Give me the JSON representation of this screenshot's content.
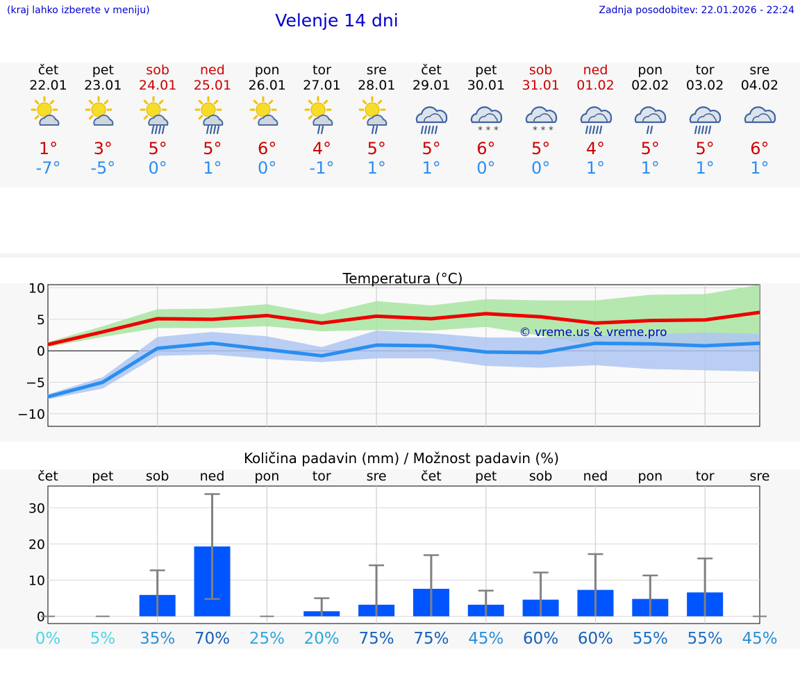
{
  "header": {
    "region_note": "(kraj lahko izberete v meniju)",
    "title": "Velenje 14 dni",
    "last_update": "Zadnja posodobitev: 22.01.2026 - 22:24"
  },
  "forecast": [
    {
      "day": "čet",
      "date": "22.01",
      "weekend": false,
      "icon": "sun-cloud-icon",
      "tmax": "1°",
      "tmin": "-7°"
    },
    {
      "day": "pet",
      "date": "23.01",
      "weekend": false,
      "icon": "sun-cloud-icon",
      "tmax": "3°",
      "tmin": "-5°"
    },
    {
      "day": "sob",
      "date": "24.01",
      "weekend": true,
      "icon": "sun-cloud-rain-icon",
      "tmax": "5°",
      "tmin": "0°"
    },
    {
      "day": "ned",
      "date": "25.01",
      "weekend": true,
      "icon": "sun-cloud-rain-icon",
      "tmax": "5°",
      "tmin": "1°"
    },
    {
      "day": "pon",
      "date": "26.01",
      "weekend": false,
      "icon": "sun-cloud-icon",
      "tmax": "6°",
      "tmin": "0°"
    },
    {
      "day": "tor",
      "date": "27.01",
      "weekend": false,
      "icon": "sun-cloud-light-rain-icon",
      "tmax": "4°",
      "tmin": "-1°"
    },
    {
      "day": "sre",
      "date": "28.01",
      "weekend": false,
      "icon": "sun-cloud-light-rain-icon",
      "tmax": "5°",
      "tmin": "1°"
    },
    {
      "day": "čet",
      "date": "29.01",
      "weekend": false,
      "icon": "cloud-rain-icon",
      "tmax": "5°",
      "tmin": "1°"
    },
    {
      "day": "pet",
      "date": "30.01",
      "weekend": false,
      "icon": "cloud-snow-icon",
      "tmax": "6°",
      "tmin": "0°"
    },
    {
      "day": "sob",
      "date": "31.01",
      "weekend": true,
      "icon": "cloud-snow-icon",
      "tmax": "5°",
      "tmin": "0°"
    },
    {
      "day": "ned",
      "date": "01.02",
      "weekend": true,
      "icon": "cloud-rain-icon",
      "tmax": "4°",
      "tmin": "1°"
    },
    {
      "day": "pon",
      "date": "02.02",
      "weekend": false,
      "icon": "cloud-light-rain-icon",
      "tmax": "5°",
      "tmin": "1°"
    },
    {
      "day": "tor",
      "date": "03.02",
      "weekend": false,
      "icon": "cloud-rain-icon",
      "tmax": "5°",
      "tmin": "1°"
    },
    {
      "day": "sre",
      "date": "04.02",
      "weekend": false,
      "icon": "cloud-icon",
      "tmax": "6°",
      "tmin": "1°"
    }
  ],
  "colors": {
    "title_blue": "#0000cc",
    "max_red": "#ee0000",
    "min_blue": "#2a8ef0",
    "max_band": "#a8e4a0",
    "min_band": "#aec6f2",
    "bar_blue": "#0055ff",
    "whisker": "#808080",
    "weekend_red": "#cc0000"
  },
  "chart_data": [
    {
      "type": "line",
      "title": "Temperatura (°C)",
      "watermark": "© vreme.us & vreme.pro",
      "x": [
        0,
        1,
        2,
        3,
        4,
        5,
        6,
        7,
        8,
        9,
        10,
        11,
        12,
        13
      ],
      "ylim": [
        -12,
        10.5
      ],
      "yticks": [
        10,
        5,
        0,
        -5,
        -10
      ],
      "ytick_labels": [
        "10",
        "5",
        "0",
        "−5",
        "−10"
      ],
      "series": [
        {
          "name": "max",
          "values": [
            1.0,
            3.0,
            5.1,
            5.0,
            5.6,
            4.4,
            5.5,
            5.1,
            5.9,
            5.4,
            4.4,
            4.8,
            4.9,
            6.1
          ],
          "band_high": [
            1.4,
            3.9,
            6.6,
            6.7,
            7.4,
            5.8,
            7.9,
            7.2,
            8.2,
            8.0,
            8.0,
            8.9,
            9.0,
            10.5
          ],
          "band_low": [
            0.6,
            2.2,
            3.6,
            3.6,
            3.9,
            3.1,
            3.3,
            3.2,
            3.8,
            2.4,
            0.8,
            0.7,
            1.1,
            1.3
          ]
        },
        {
          "name": "min",
          "values": [
            -7.3,
            -5.0,
            0.4,
            1.2,
            0.2,
            -0.8,
            0.9,
            0.8,
            -0.2,
            -0.3,
            1.2,
            1.1,
            0.8,
            1.2
          ],
          "band_high": [
            -6.9,
            -4.2,
            2.2,
            3.0,
            2.3,
            0.6,
            3.2,
            2.8,
            2.1,
            2.1,
            2.4,
            2.6,
            2.9,
            2.7
          ],
          "band_low": [
            -7.7,
            -6.0,
            -0.8,
            -0.6,
            -1.3,
            -1.8,
            -1.2,
            -1.2,
            -2.4,
            -2.7,
            -2.3,
            -2.9,
            -3.1,
            -3.3
          ]
        }
      ]
    },
    {
      "type": "bar",
      "title": "Količina padavin (mm) / Možnost padavin (%)",
      "categories": [
        "čet",
        "pet",
        "sob",
        "ned",
        "pon",
        "tor",
        "sre",
        "čet",
        "pet",
        "sob",
        "ned",
        "pon",
        "tor",
        "sre"
      ],
      "ylim": [
        -2,
        36
      ],
      "yticks": [
        0,
        10,
        20,
        30
      ],
      "ytick_labels": [
        "0",
        "10",
        "20",
        "30"
      ],
      "values": [
        0,
        0,
        5.9,
        19.3,
        0,
        1.4,
        3.2,
        7.6,
        3.2,
        4.6,
        7.3,
        4.8,
        6.6,
        0
      ],
      "err_low": [
        0,
        0,
        0,
        4.8,
        0,
        0,
        0,
        0,
        0,
        0,
        0,
        0,
        0,
        0
      ],
      "err_high": [
        0,
        0,
        12.7,
        33.8,
        0,
        5.0,
        14.1,
        16.9,
        7.1,
        12.1,
        17.2,
        11.3,
        16.0,
        0
      ],
      "probability": [
        {
          "label": "0%",
          "color": "#4dd4e6"
        },
        {
          "label": "5%",
          "color": "#4dd4e6"
        },
        {
          "label": "35%",
          "color": "#2a8fd6"
        },
        {
          "label": "70%",
          "color": "#1560b8"
        },
        {
          "label": "25%",
          "color": "#2fa6dc"
        },
        {
          "label": "20%",
          "color": "#2fa6dc"
        },
        {
          "label": "75%",
          "color": "#1560b8"
        },
        {
          "label": "75%",
          "color": "#1560b8"
        },
        {
          "label": "45%",
          "color": "#2a8fd6"
        },
        {
          "label": "60%",
          "color": "#1560b8"
        },
        {
          "label": "60%",
          "color": "#1560b8"
        },
        {
          "label": "55%",
          "color": "#1a6fc4"
        },
        {
          "label": "55%",
          "color": "#1a6fc4"
        },
        {
          "label": "45%",
          "color": "#2a8fd6"
        }
      ]
    }
  ]
}
